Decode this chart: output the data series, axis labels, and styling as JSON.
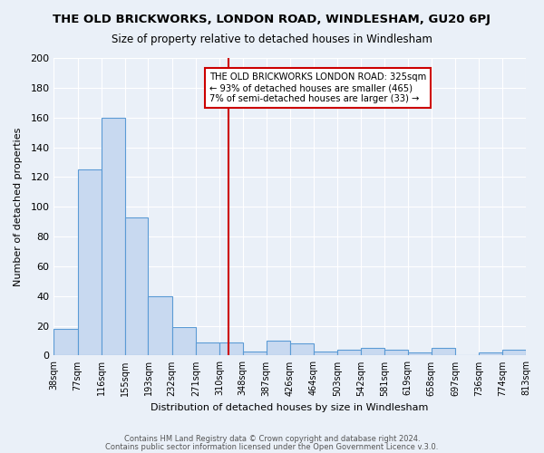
{
  "title": "THE OLD BRICKWORKS, LONDON ROAD, WINDLESHAM, GU20 6PJ",
  "subtitle": "Size of property relative to detached houses in Windlesham",
  "xlabel": "Distribution of detached houses by size in Windlesham",
  "ylabel": "Number of detached properties",
  "bar_labels": [
    "38sqm",
    "77sqm",
    "116sqm",
    "155sqm",
    "193sqm",
    "232sqm",
    "271sqm",
    "310sqm",
    "348sqm",
    "387sqm",
    "426sqm",
    "464sqm",
    "503sqm",
    "542sqm",
    "581sqm",
    "619sqm",
    "658sqm",
    "697sqm",
    "736sqm",
    "774sqm",
    "813sqm"
  ],
  "bar_heights": [
    18,
    125,
    160,
    93,
    40,
    19,
    9,
    9,
    3,
    10,
    8,
    3,
    4,
    5,
    4,
    2,
    5,
    0,
    2,
    4
  ],
  "bin_edges": [
    38,
    77,
    116,
    155,
    193,
    232,
    271,
    310,
    348,
    387,
    426,
    464,
    503,
    542,
    581,
    619,
    658,
    697,
    736,
    774,
    813
  ],
  "bar_color": "#c8d9f0",
  "bar_edge_color": "#5b9bd5",
  "vline_x": 325,
  "vline_color": "#cc0000",
  "annotation_title": "THE OLD BRICKWORKS LONDON ROAD: 325sqm",
  "annotation_line1": "← 93% of detached houses are smaller (465)",
  "annotation_line2": "7% of semi-detached houses are larger (33) →",
  "annotation_box_color": "#ffffff",
  "annotation_box_edge": "#cc0000",
  "ylim": [
    0,
    200
  ],
  "yticks": [
    0,
    20,
    40,
    60,
    80,
    100,
    120,
    140,
    160,
    180,
    200
  ],
  "background_color": "#eaf0f8",
  "footer_line1": "Contains HM Land Registry data © Crown copyright and database right 2024.",
  "footer_line2": "Contains public sector information licensed under the Open Government Licence v.3.0."
}
